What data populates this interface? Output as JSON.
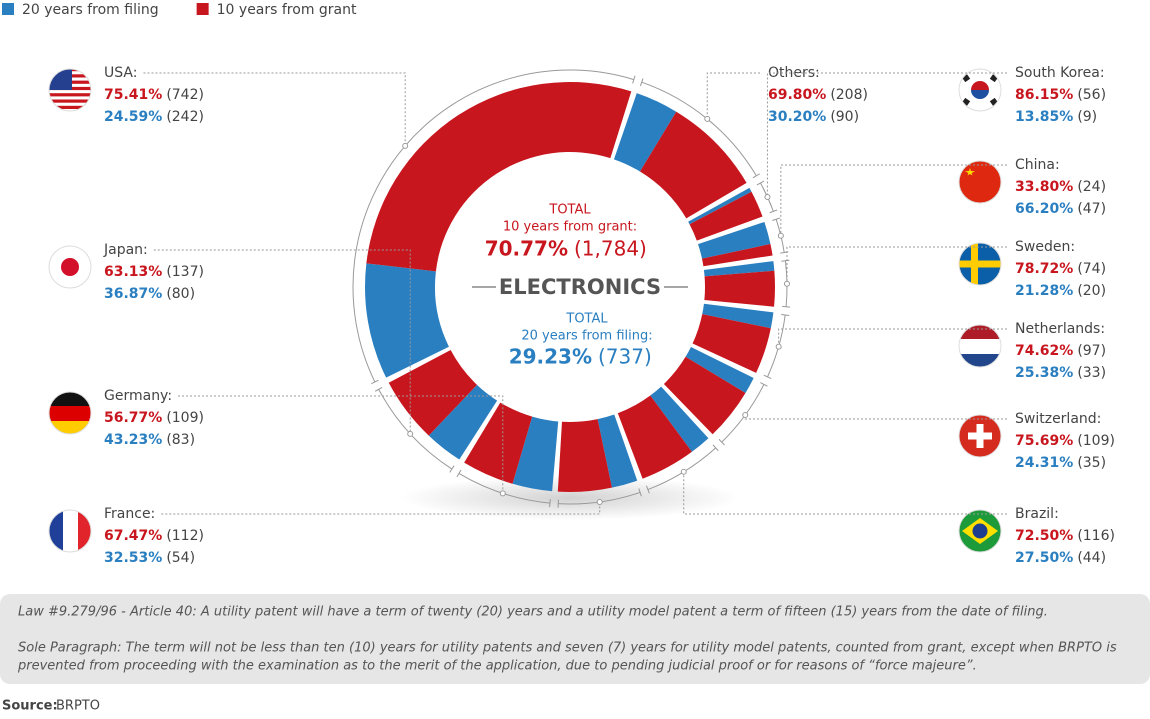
{
  "chart_data": {
    "type": "donut",
    "categories": [
      "Others:",
      "South Korea:",
      "China:",
      "Sweden:",
      "Netherlands:",
      "Switzerland:",
      "Brazil:",
      "France:",
      "Germany:",
      "Japan:",
      "USA:"
    ],
    "series": [
      {
        "name": "20 years from filing",
        "color": "#2a7fc1",
        "values": [
          90,
          9,
          47,
          20,
          33,
          35,
          44,
          54,
          83,
          80,
          242
        ],
        "value_labels": [
          "(90)",
          "(9)",
          "(47)",
          "(20)",
          "(33)",
          "(35)",
          "(44)",
          "(54)",
          "(83)",
          "(80)",
          "(242)"
        ],
        "percent_labels": [
          "30.20%",
          "13.85%",
          "66.20%",
          "21.28%",
          "25.38%",
          "24.31%",
          "27.50%",
          "32.53%",
          "43.23%",
          "36.87%",
          "24.59%"
        ]
      },
      {
        "name": "10 years from grant",
        "color": "#c8161e",
        "values": [
          208,
          56,
          24,
          74,
          97,
          109,
          116,
          112,
          109,
          137,
          742
        ],
        "value_labels": [
          "(208)",
          "(56)",
          "(24)",
          "(74)",
          "(97)",
          "(109)",
          "(116)",
          "(112)",
          "(109)",
          "(137)",
          "(742)"
        ],
        "percent_labels": [
          "69.80%",
          "86.15%",
          "33.80%",
          "78.72%",
          "74.62%",
          "75.69%",
          "72.50%",
          "67.47%",
          "56.77%",
          "63.13%",
          "75.41%"
        ]
      }
    ],
    "center": {
      "title": "ELECTRONICS",
      "grant_total_label": "TOTAL",
      "grant_caption": "10 years from grant:",
      "grant_percent": "70.77%",
      "grant_count": "(1,784)",
      "filing_total_label": "TOTAL",
      "filing_caption": "20 years from filing:",
      "filing_percent": "29.23%",
      "filing_count": "(737)"
    },
    "notes": [
      "Law #9.279/96 - Article 40: A utility patent will have a term of twenty (20) years and a utility model patent a term of fifteen (15) years from the date of filing.",
      "Sole Paragraph: The term will not be less than ten (10) years for utility patents and seven (7) years for utility model patents, counted from grant, except when BRPTO is",
      "prevented from proceeding with the examination as to the merit of the application, due to pending judicial proof or for reasons of “force majeure”."
    ],
    "source_label": "Source:",
    "source": "BRPTO"
  }
}
